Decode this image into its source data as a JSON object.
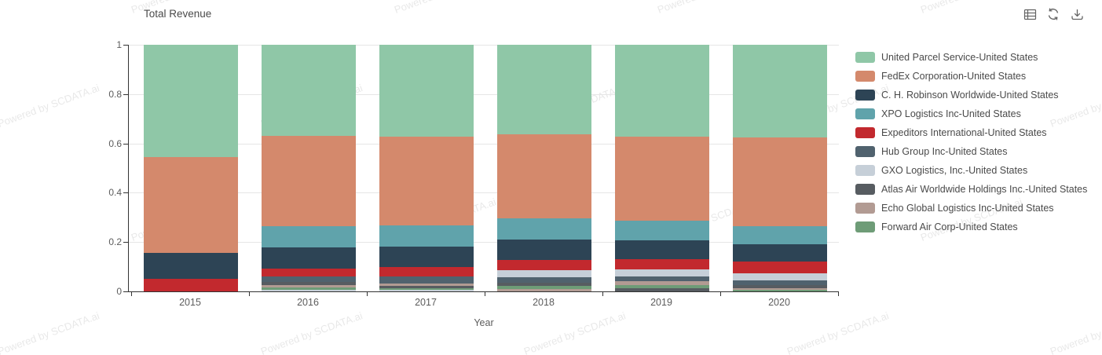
{
  "header": {
    "title": "Total Revenue",
    "toolbar": [
      {
        "name": "data-view-icon"
      },
      {
        "name": "refresh-icon"
      },
      {
        "name": "download-icon"
      }
    ]
  },
  "watermark": {
    "text": "Powered by SCDATA.ai"
  },
  "axes": {
    "x_label": "Year",
    "y_tick_labels": [
      "0",
      "0.2",
      "0.4",
      "0.6",
      "0.8",
      "1"
    ]
  },
  "chart_data": {
    "type": "bar",
    "stacked": true,
    "normalized": true,
    "title": "Total Revenue",
    "xlabel": "Year",
    "ylabel": "",
    "ylim": [
      0,
      1
    ],
    "yticks": [
      0,
      0.2,
      0.4,
      0.6,
      0.8,
      1
    ],
    "grid": true,
    "legend_position": "right",
    "segment_order": "sorted_descending_within_each_bar",
    "categories": [
      "2015",
      "2016",
      "2017",
      "2018",
      "2019",
      "2020"
    ],
    "series": [
      {
        "name": "United Parcel Service-United States",
        "color": "#8fc7a7",
        "values": [
          0.455,
          0.37,
          0.373,
          0.363,
          0.372,
          0.375
        ]
      },
      {
        "name": "FedEx Corporation-United States",
        "color": "#d4896c",
        "values": [
          0.39,
          0.365,
          0.36,
          0.342,
          0.342,
          0.362
        ]
      },
      {
        "name": "C. H. Robinson Worldwide-United States",
        "color": "#2d4455",
        "values": [
          0.105,
          0.084,
          0.083,
          0.082,
          0.077,
          0.069
        ]
      },
      {
        "name": "XPO Logistics Inc-United States",
        "color": "#60a3ab",
        "values": [
          0.0,
          0.088,
          0.086,
          0.085,
          0.079,
          0.072
        ]
      },
      {
        "name": "Expeditors International-United States",
        "color": "#c2292e",
        "values": [
          0.05,
          0.032,
          0.039,
          0.043,
          0.04,
          0.048
        ]
      },
      {
        "name": "Hub Group Inc-United States",
        "color": "#50626e",
        "values": [
          0.0,
          0.024,
          0.028,
          0.021,
          0.02,
          0.019
        ]
      },
      {
        "name": "GXO Logistics, Inc.-United States",
        "color": "#c6cfd8",
        "values": [
          0.0,
          0.007,
          0.005,
          0.029,
          0.03,
          0.03
        ]
      },
      {
        "name": "Atlas Air Worldwide Holdings Inc.-United States",
        "color": "#575c61",
        "values": [
          0.0,
          0.011,
          0.009,
          0.012,
          0.012,
          0.012
        ]
      },
      {
        "name": "Echo Global Logistics Inc-United States",
        "color": "#b29b93",
        "values": [
          0.0,
          0.01,
          0.01,
          0.011,
          0.014,
          0.007
        ]
      },
      {
        "name": "Forward Air Corp-United States",
        "color": "#6e9c77",
        "values": [
          0.0,
          0.009,
          0.007,
          0.012,
          0.014,
          0.006
        ]
      }
    ]
  }
}
